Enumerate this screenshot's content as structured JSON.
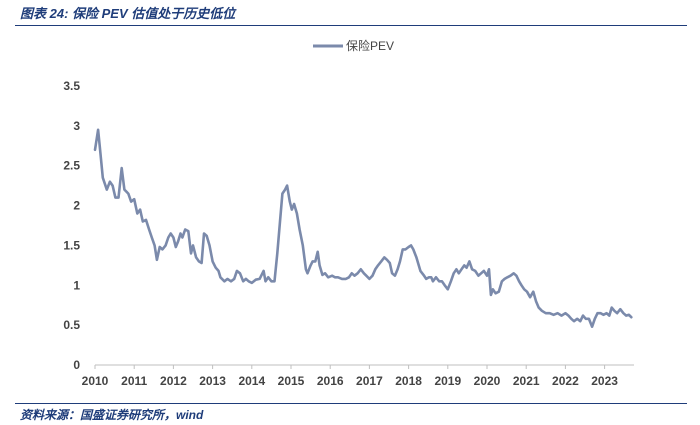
{
  "figure": {
    "title": "图表 24:  保险 PEV 估值处于历史低位",
    "source": "资料来源：国盛证券研究所，wind"
  },
  "colors": {
    "series": "#7b8aab",
    "axis": "#bfbfbf",
    "text": "#444444",
    "brand": "#1f3d7a"
  },
  "chart_data": {
    "type": "line",
    "title": "保险 PEV 估值处于历史低位",
    "xlabel": "",
    "ylabel": "",
    "xlim": [
      2010,
      2023.75
    ],
    "ylim": [
      0,
      3.5
    ],
    "yticks": [
      "0",
      "0.5",
      "1",
      "1.5",
      "2",
      "2.5",
      "3",
      "3.5"
    ],
    "xticks": [
      "2010",
      "2011",
      "2012",
      "2013",
      "2014",
      "2015",
      "2016",
      "2017",
      "2018",
      "2019",
      "2020",
      "2021",
      "2022",
      "2023"
    ],
    "legend_position": "top-center",
    "grid": false,
    "series": [
      {
        "name": "保险PEV",
        "points": [
          [
            2010.0,
            2.7
          ],
          [
            2010.08,
            2.95
          ],
          [
            2010.12,
            2.75
          ],
          [
            2010.2,
            2.35
          ],
          [
            2010.3,
            2.2
          ],
          [
            2010.38,
            2.3
          ],
          [
            2010.45,
            2.25
          ],
          [
            2010.52,
            2.1
          ],
          [
            2010.6,
            2.1
          ],
          [
            2010.68,
            2.47
          ],
          [
            2010.75,
            2.2
          ],
          [
            2010.85,
            2.15
          ],
          [
            2010.92,
            2.05
          ],
          [
            2011.0,
            2.08
          ],
          [
            2011.08,
            1.9
          ],
          [
            2011.15,
            1.95
          ],
          [
            2011.22,
            1.8
          ],
          [
            2011.3,
            1.82
          ],
          [
            2011.38,
            1.7
          ],
          [
            2011.45,
            1.6
          ],
          [
            2011.52,
            1.5
          ],
          [
            2011.58,
            1.32
          ],
          [
            2011.65,
            1.48
          ],
          [
            2011.72,
            1.45
          ],
          [
            2011.8,
            1.5
          ],
          [
            2011.87,
            1.6
          ],
          [
            2011.93,
            1.65
          ],
          [
            2012.0,
            1.6
          ],
          [
            2012.06,
            1.48
          ],
          [
            2012.12,
            1.55
          ],
          [
            2012.18,
            1.65
          ],
          [
            2012.23,
            1.6
          ],
          [
            2012.3,
            1.7
          ],
          [
            2012.38,
            1.68
          ],
          [
            2012.45,
            1.4
          ],
          [
            2012.5,
            1.5
          ],
          [
            2012.58,
            1.35
          ],
          [
            2012.65,
            1.3
          ],
          [
            2012.72,
            1.28
          ],
          [
            2012.78,
            1.65
          ],
          [
            2012.85,
            1.62
          ],
          [
            2012.92,
            1.5
          ],
          [
            2013.0,
            1.3
          ],
          [
            2013.08,
            1.22
          ],
          [
            2013.15,
            1.18
          ],
          [
            2013.2,
            1.1
          ],
          [
            2013.3,
            1.05
          ],
          [
            2013.38,
            1.08
          ],
          [
            2013.47,
            1.05
          ],
          [
            2013.55,
            1.08
          ],
          [
            2013.62,
            1.18
          ],
          [
            2013.7,
            1.15
          ],
          [
            2013.78,
            1.05
          ],
          [
            2013.85,
            1.08
          ],
          [
            2013.92,
            1.05
          ],
          [
            2014.0,
            1.03
          ],
          [
            2014.1,
            1.07
          ],
          [
            2014.2,
            1.08
          ],
          [
            2014.3,
            1.18
          ],
          [
            2014.35,
            1.05
          ],
          [
            2014.42,
            1.1
          ],
          [
            2014.5,
            1.05
          ],
          [
            2014.58,
            1.05
          ],
          [
            2014.65,
            1.4
          ],
          [
            2014.72,
            1.8
          ],
          [
            2014.78,
            2.15
          ],
          [
            2014.85,
            2.2
          ],
          [
            2014.9,
            2.25
          ],
          [
            2014.97,
            2.05
          ],
          [
            2015.02,
            1.95
          ],
          [
            2015.08,
            2.02
          ],
          [
            2015.15,
            1.9
          ],
          [
            2015.22,
            1.7
          ],
          [
            2015.3,
            1.5
          ],
          [
            2015.38,
            1.2
          ],
          [
            2015.42,
            1.15
          ],
          [
            2015.5,
            1.25
          ],
          [
            2015.55,
            1.3
          ],
          [
            2015.62,
            1.3
          ],
          [
            2015.68,
            1.42
          ],
          [
            2015.73,
            1.25
          ],
          [
            2015.8,
            1.13
          ],
          [
            2015.87,
            1.15
          ],
          [
            2015.95,
            1.1
          ],
          [
            2016.05,
            1.12
          ],
          [
            2016.12,
            1.1
          ],
          [
            2016.2,
            1.1
          ],
          [
            2016.3,
            1.08
          ],
          [
            2016.4,
            1.08
          ],
          [
            2016.48,
            1.1
          ],
          [
            2016.55,
            1.15
          ],
          [
            2016.62,
            1.12
          ],
          [
            2016.7,
            1.15
          ],
          [
            2016.78,
            1.2
          ],
          [
            2016.86,
            1.15
          ],
          [
            2016.92,
            1.12
          ],
          [
            2017.0,
            1.08
          ],
          [
            2017.08,
            1.12
          ],
          [
            2017.15,
            1.2
          ],
          [
            2017.22,
            1.25
          ],
          [
            2017.3,
            1.3
          ],
          [
            2017.38,
            1.35
          ],
          [
            2017.45,
            1.32
          ],
          [
            2017.52,
            1.28
          ],
          [
            2017.58,
            1.15
          ],
          [
            2017.65,
            1.12
          ],
          [
            2017.72,
            1.2
          ],
          [
            2017.78,
            1.3
          ],
          [
            2017.85,
            1.45
          ],
          [
            2017.92,
            1.45
          ],
          [
            2018.0,
            1.48
          ],
          [
            2018.06,
            1.5
          ],
          [
            2018.12,
            1.45
          ],
          [
            2018.2,
            1.35
          ],
          [
            2018.3,
            1.18
          ],
          [
            2018.38,
            1.13
          ],
          [
            2018.45,
            1.08
          ],
          [
            2018.52,
            1.1
          ],
          [
            2018.58,
            1.1
          ],
          [
            2018.62,
            1.05
          ],
          [
            2018.7,
            1.1
          ],
          [
            2018.78,
            1.05
          ],
          [
            2018.85,
            1.05
          ],
          [
            2018.92,
            1.0
          ],
          [
            2019.0,
            0.95
          ],
          [
            2019.08,
            1.05
          ],
          [
            2019.15,
            1.15
          ],
          [
            2019.22,
            1.2
          ],
          [
            2019.28,
            1.15
          ],
          [
            2019.35,
            1.2
          ],
          [
            2019.42,
            1.25
          ],
          [
            2019.48,
            1.22
          ],
          [
            2019.55,
            1.3
          ],
          [
            2019.62,
            1.2
          ],
          [
            2019.7,
            1.18
          ],
          [
            2019.78,
            1.12
          ],
          [
            2019.85,
            1.15
          ],
          [
            2019.92,
            1.18
          ],
          [
            2020.0,
            1.12
          ],
          [
            2020.05,
            1.2
          ],
          [
            2020.1,
            0.88
          ],
          [
            2020.15,
            0.95
          ],
          [
            2020.22,
            0.9
          ],
          [
            2020.3,
            0.92
          ],
          [
            2020.38,
            1.05
          ],
          [
            2020.45,
            1.08
          ],
          [
            2020.52,
            1.1
          ],
          [
            2020.6,
            1.12
          ],
          [
            2020.68,
            1.15
          ],
          [
            2020.75,
            1.12
          ],
          [
            2020.82,
            1.05
          ],
          [
            2020.88,
            1.0
          ],
          [
            2020.95,
            0.95
          ],
          [
            2021.02,
            0.92
          ],
          [
            2021.1,
            0.85
          ],
          [
            2021.18,
            0.92
          ],
          [
            2021.25,
            0.8
          ],
          [
            2021.32,
            0.72
          ],
          [
            2021.4,
            0.68
          ],
          [
            2021.5,
            0.65
          ],
          [
            2021.6,
            0.65
          ],
          [
            2021.7,
            0.63
          ],
          [
            2021.8,
            0.65
          ],
          [
            2021.9,
            0.62
          ],
          [
            2022.0,
            0.65
          ],
          [
            2022.08,
            0.62
          ],
          [
            2022.15,
            0.58
          ],
          [
            2022.22,
            0.55
          ],
          [
            2022.3,
            0.58
          ],
          [
            2022.38,
            0.55
          ],
          [
            2022.45,
            0.62
          ],
          [
            2022.52,
            0.58
          ],
          [
            2022.6,
            0.58
          ],
          [
            2022.68,
            0.48
          ],
          [
            2022.75,
            0.58
          ],
          [
            2022.82,
            0.65
          ],
          [
            2022.9,
            0.65
          ],
          [
            2022.97,
            0.63
          ],
          [
            2023.05,
            0.65
          ],
          [
            2023.12,
            0.62
          ],
          [
            2023.18,
            0.72
          ],
          [
            2023.25,
            0.68
          ],
          [
            2023.32,
            0.65
          ],
          [
            2023.4,
            0.7
          ],
          [
            2023.48,
            0.65
          ],
          [
            2023.55,
            0.62
          ],
          [
            2023.62,
            0.63
          ],
          [
            2023.68,
            0.6
          ]
        ]
      }
    ]
  }
}
